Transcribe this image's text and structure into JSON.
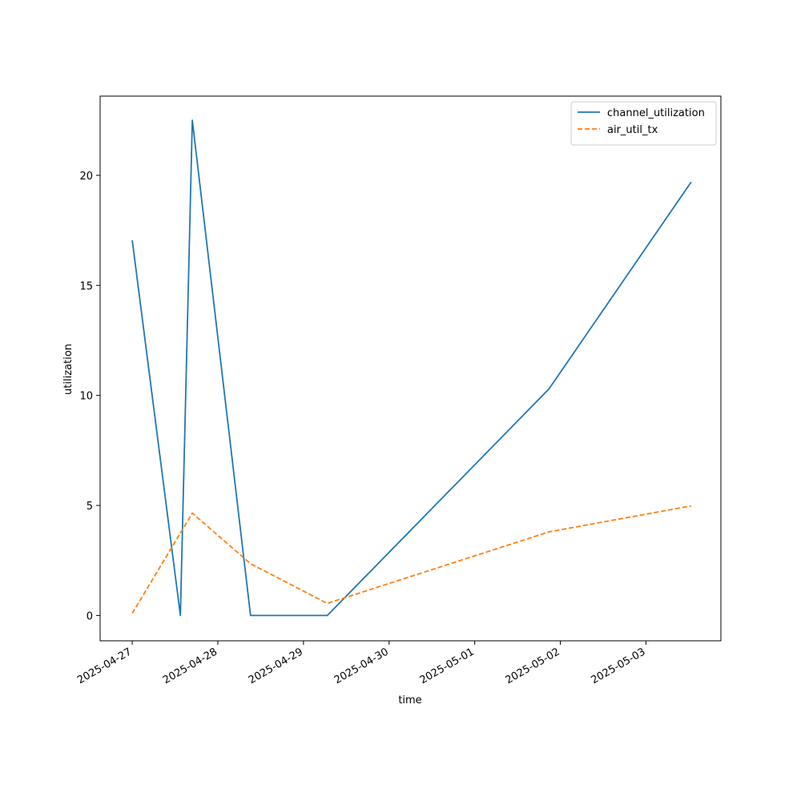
{
  "chart_data": {
    "type": "line",
    "xlabel": "time",
    "ylabel": "utilization",
    "x_ticks": [
      "2025-04-27",
      "2025-04-28",
      "2025-04-29",
      "2025-04-30",
      "2025-05-01",
      "2025-05-02",
      "2025-05-03"
    ],
    "y_ticks": [
      0,
      5,
      10,
      15,
      20
    ],
    "xlim": [
      "2026-04-26 15:00",
      "2025-05-03 21:00"
    ],
    "ylim": [
      -1.15,
      23.6
    ],
    "grid": false,
    "legend_position": "top-right",
    "series": [
      {
        "name": "channel_utilization",
        "color": "#1f77b4",
        "dash": "solid",
        "points": [
          {
            "x": "2025-04-27 00:00",
            "y": 17.05
          },
          {
            "x": "2025-04-27 13:30",
            "y": 0.0
          },
          {
            "x": "2025-04-27 16:50",
            "y": 22.5
          },
          {
            "x": "2025-04-28 09:10",
            "y": 0.0
          },
          {
            "x": "2025-04-29 06:40",
            "y": 0.0
          },
          {
            "x": "2025-05-01 20:50",
            "y": 10.3
          },
          {
            "x": "2025-05-03 12:40",
            "y": 19.7
          }
        ]
      },
      {
        "name": "air_util_tx",
        "color": "#ff7f0e",
        "dash": "dashed",
        "points": [
          {
            "x": "2025-04-27 00:00",
            "y": 0.1
          },
          {
            "x": "2025-04-27 16:50",
            "y": 4.65
          },
          {
            "x": "2025-04-28 09:10",
            "y": 2.35
          },
          {
            "x": "2025-04-29 06:40",
            "y": 0.55
          },
          {
            "x": "2025-05-01 20:50",
            "y": 3.8
          },
          {
            "x": "2025-05-03 12:40",
            "y": 4.98
          }
        ]
      }
    ]
  }
}
